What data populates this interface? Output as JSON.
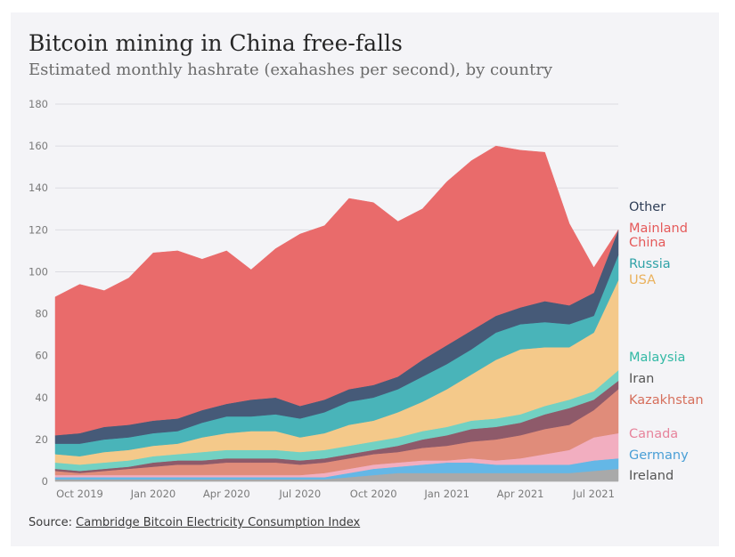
{
  "header": {
    "title": "Bitcoin mining in China free-falls",
    "subtitle": "Estimated monthly hashrate (exahashes per second), by country"
  },
  "footer": {
    "source_prefix": "Source: ",
    "source_link": "Cambridge Bitcoin Electricity Consumption Index"
  },
  "colors": {
    "background": "#f4f4f7",
    "gridline": "#dcdce2"
  },
  "chart_data": {
    "type": "area",
    "stacked": true,
    "x": [
      "2019-09",
      "2019-10",
      "2019-11",
      "2019-12",
      "2020-01",
      "2020-02",
      "2020-03",
      "2020-04",
      "2020-05",
      "2020-06",
      "2020-07",
      "2020-08",
      "2020-09",
      "2020-10",
      "2020-11",
      "2020-12",
      "2021-01",
      "2021-02",
      "2021-03",
      "2021-04",
      "2021-05",
      "2021-06",
      "2021-07",
      "2021-08"
    ],
    "x_tick_labels": [
      "Oct 2019",
      "Jan 2020",
      "Apr 2020",
      "Jul 2020",
      "Oct 2020",
      "Jan 2021",
      "Apr 2021",
      "Jul 2021"
    ],
    "ylim": [
      0,
      180
    ],
    "y_ticks": [
      0,
      20,
      40,
      60,
      80,
      100,
      120,
      140,
      160,
      180
    ],
    "grid": true,
    "legend_position": "right, at series end",
    "series": [
      {
        "name": "Ireland",
        "color": "#a9a9a9",
        "text_color": "#555555",
        "values": [
          1,
          1,
          1,
          1,
          1,
          1,
          1,
          1,
          1,
          1,
          1,
          1,
          2,
          3,
          4,
          4,
          4,
          4,
          4,
          4,
          4,
          4,
          5,
          6
        ]
      },
      {
        "name": "Germany",
        "color": "#64b7e6",
        "text_color": "#4a9fd6",
        "values": [
          1,
          1,
          1,
          1,
          1,
          1,
          1,
          1,
          1,
          1,
          1,
          1,
          2,
          3,
          3,
          4,
          5,
          5,
          4,
          4,
          4,
          4,
          5,
          5
        ]
      },
      {
        "name": "Canada",
        "color": "#f2aec0",
        "text_color": "#e7849c",
        "values": [
          1,
          1,
          1,
          1,
          1,
          1,
          1,
          1,
          1,
          1,
          1,
          2,
          2,
          2,
          2,
          2,
          1,
          2,
          2,
          3,
          5,
          7,
          11,
          12
        ]
      },
      {
        "name": "Kazakhstan",
        "color": "#e08c7a",
        "text_color": "#d66f5c",
        "values": [
          2,
          1,
          2,
          3,
          4,
          5,
          5,
          6,
          6,
          6,
          5,
          5,
          5,
          5,
          5,
          6,
          7,
          8,
          10,
          11,
          12,
          12,
          13,
          21
        ]
      },
      {
        "name": "Iran",
        "color": "#8e5a6a",
        "text_color": "#555555",
        "values": [
          1,
          1,
          1,
          1,
          2,
          2,
          2,
          2,
          2,
          2,
          2,
          2,
          2,
          2,
          3,
          4,
          5,
          6,
          6,
          6,
          7,
          8,
          5,
          4
        ]
      },
      {
        "name": "Malaysia",
        "color": "#72d1c3",
        "text_color": "#33b9a5",
        "values": [
          3,
          3,
          3,
          3,
          3,
          3,
          4,
          4,
          4,
          4,
          4,
          4,
          4,
          4,
          4,
          4,
          4,
          4,
          4,
          4,
          4,
          4,
          4,
          5
        ]
      },
      {
        "name": "USA",
        "color": "#f4c98a",
        "text_color": "#eab15c",
        "values": [
          4,
          4,
          5,
          5,
          5,
          5,
          7,
          8,
          9,
          9,
          7,
          8,
          10,
          10,
          12,
          14,
          18,
          22,
          28,
          31,
          28,
          25,
          28,
          43
        ]
      },
      {
        "name": "Russia",
        "color": "#49b4b9",
        "text_color": "#2fa2a7",
        "values": [
          5,
          6,
          6,
          6,
          6,
          6,
          7,
          8,
          7,
          8,
          9,
          10,
          11,
          11,
          11,
          12,
          12,
          12,
          13,
          12,
          12,
          11,
          8,
          12
        ]
      },
      {
        "name": "Other",
        "color": "#465a78",
        "text_color": "#2f3e57",
        "values": [
          4,
          5,
          6,
          6,
          6,
          6,
          6,
          6,
          8,
          8,
          6,
          6,
          6,
          6,
          6,
          8,
          9,
          9,
          8,
          8,
          10,
          9,
          11,
          12
        ]
      },
      {
        "name": "Mainland China",
        "color": "#e96b6b",
        "text_color": "#e55a5a",
        "values": [
          66,
          71,
          65,
          70,
          80,
          80,
          72,
          73,
          62,
          71,
          82,
          83,
          91,
          87,
          74,
          72,
          78,
          81,
          81,
          75,
          71,
          39,
          12,
          0
        ]
      }
    ]
  }
}
